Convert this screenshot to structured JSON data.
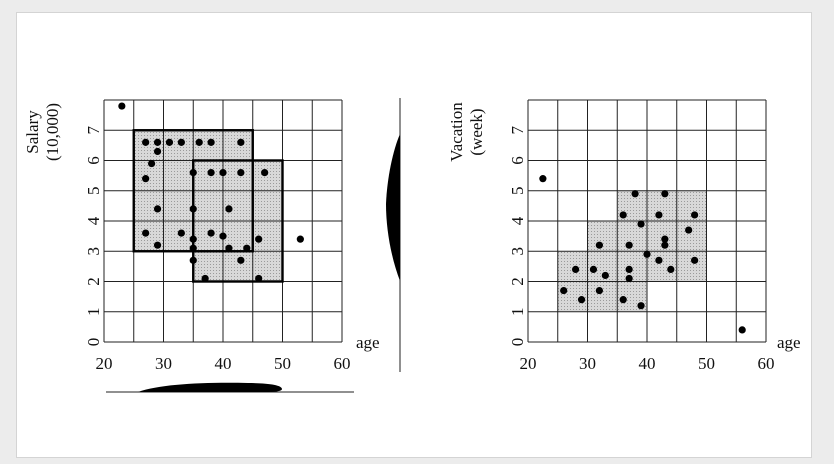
{
  "chart_data": [
    {
      "type": "scatter",
      "title": "",
      "xlabel": "age",
      "ylabel": [
        "Salary",
        "(10,000)"
      ],
      "xlim": [
        20,
        60
      ],
      "ylim": [
        0,
        8
      ],
      "x_ticks": [
        20,
        30,
        40,
        50,
        60
      ],
      "y_ticks": [
        0,
        1,
        2,
        3,
        4,
        5,
        6,
        7
      ],
      "grid": true,
      "dense_regions": [
        {
          "x": [
            25,
            45
          ],
          "y": [
            3,
            7
          ]
        },
        {
          "x": [
            35,
            50
          ],
          "y": [
            2,
            6
          ]
        }
      ],
      "marginal_projections": [
        "right",
        "bottom"
      ],
      "points": [
        [
          23,
          7.8
        ],
        [
          27,
          6.6
        ],
        [
          29,
          6.6
        ],
        [
          31,
          6.6
        ],
        [
          33,
          6.6
        ],
        [
          36,
          6.6
        ],
        [
          38,
          6.6
        ],
        [
          43,
          6.6
        ],
        [
          29,
          6.3
        ],
        [
          28,
          5.9
        ],
        [
          27,
          5.4
        ],
        [
          35,
          5.6
        ],
        [
          38,
          5.6
        ],
        [
          40,
          5.6
        ],
        [
          43,
          5.6
        ],
        [
          47,
          5.6
        ],
        [
          29,
          4.4
        ],
        [
          35,
          4.4
        ],
        [
          41,
          4.4
        ],
        [
          27,
          3.6
        ],
        [
          33,
          3.6
        ],
        [
          38,
          3.6
        ],
        [
          40,
          3.5
        ],
        [
          35,
          3.4
        ],
        [
          46,
          3.4
        ],
        [
          29,
          3.2
        ],
        [
          35,
          3.1
        ],
        [
          41,
          3.1
        ],
        [
          44,
          3.1
        ],
        [
          35,
          2.7
        ],
        [
          43,
          2.7
        ],
        [
          37,
          2.1
        ],
        [
          46,
          2.1
        ],
        [
          53,
          3.4
        ]
      ]
    },
    {
      "type": "scatter",
      "title": "",
      "xlabel": "age",
      "ylabel": [
        "Vacation",
        "(week)"
      ],
      "xlim": [
        20,
        60
      ],
      "ylim": [
        0,
        8
      ],
      "x_ticks": [
        20,
        30,
        40,
        50,
        60
      ],
      "y_ticks": [
        0,
        1,
        2,
        3,
        4,
        5,
        6,
        7
      ],
      "grid": true,
      "dense_cells": [
        {
          "x": [
            25,
            35
          ],
          "y": [
            1,
            3
          ]
        },
        {
          "x": [
            30,
            40
          ],
          "y": [
            3,
            4
          ]
        },
        {
          "x": [
            35,
            40
          ],
          "y": [
            1,
            2
          ]
        },
        {
          "x": [
            35,
            50
          ],
          "y": [
            2,
            5
          ]
        }
      ],
      "points": [
        [
          22.5,
          5.4
        ],
        [
          38,
          4.9
        ],
        [
          43,
          4.9
        ],
        [
          36,
          4.2
        ],
        [
          42,
          4.2
        ],
        [
          48,
          4.2
        ],
        [
          39,
          3.9
        ],
        [
          47,
          3.7
        ],
        [
          43,
          3.4
        ],
        [
          32,
          3.2
        ],
        [
          37,
          3.2
        ],
        [
          43,
          3.2
        ],
        [
          40,
          2.9
        ],
        [
          42,
          2.7
        ],
        [
          48,
          2.7
        ],
        [
          28,
          2.4
        ],
        [
          31,
          2.4
        ],
        [
          37,
          2.4
        ],
        [
          44,
          2.4
        ],
        [
          33,
          2.2
        ],
        [
          37,
          2.1
        ],
        [
          26,
          1.7
        ],
        [
          32,
          1.7
        ],
        [
          29,
          1.4
        ],
        [
          36,
          1.4
        ],
        [
          39,
          1.2
        ],
        [
          56,
          0.4
        ]
      ]
    }
  ]
}
